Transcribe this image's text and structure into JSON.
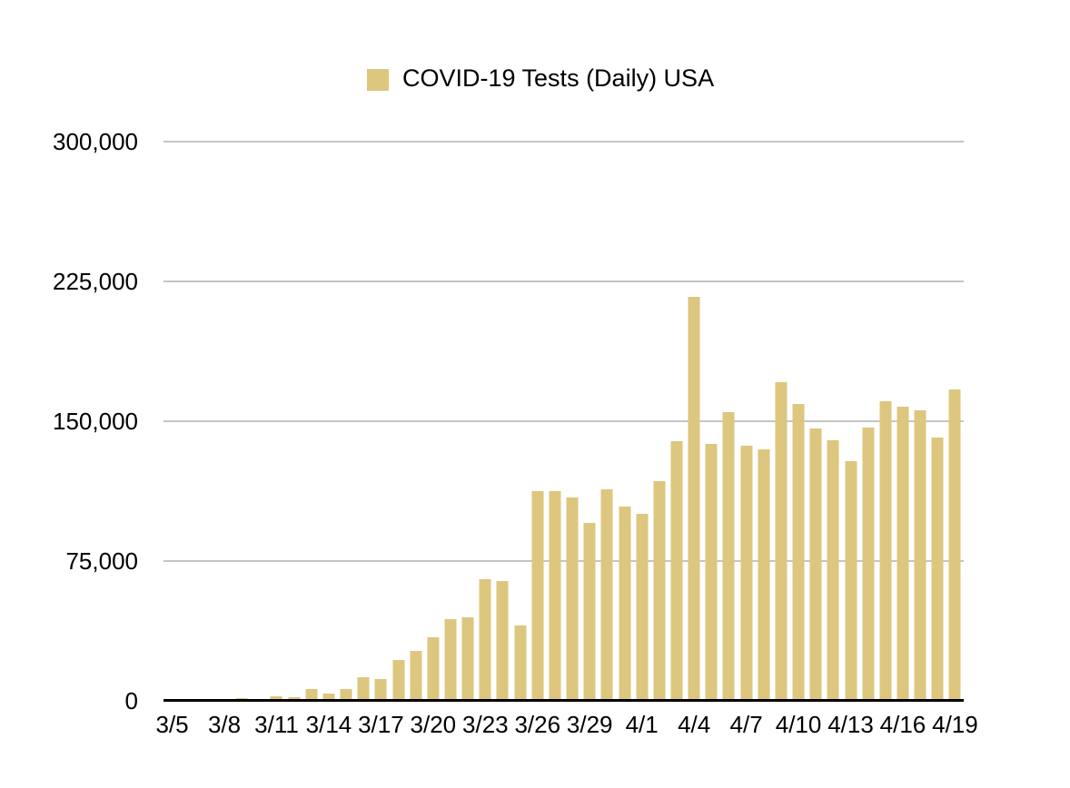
{
  "page": {
    "background_color": "#ffffff",
    "text_color": "#000000"
  },
  "legend": {
    "label": "COVID-19 Tests (Daily) USA",
    "swatch_color": "#DDC67E"
  },
  "chart_data": {
    "type": "bar",
    "title": "COVID-19 Tests (Daily) USA",
    "legend_position": "top",
    "grid": "horizontal",
    "bar_color": "#DDC67E",
    "gridline_color": "#C5C5C5",
    "axis_color": "#000000",
    "ylim": [
      0,
      300000
    ],
    "yticks": [
      0,
      75000,
      150000,
      225000,
      300000
    ],
    "ytick_labels": [
      "0",
      "75,000",
      "150,000",
      "225,000",
      "300,000"
    ],
    "xtick_every": 3,
    "xtick_labels": [
      "3/5",
      "3/8",
      "3/11",
      "3/14",
      "3/17",
      "3/20",
      "3/23",
      "3/26",
      "3/29",
      "4/1",
      "4/4",
      "4/7",
      "4/10",
      "4/13",
      "4/16",
      "4/19"
    ],
    "x": [
      "3/5",
      "3/6",
      "3/7",
      "3/8",
      "3/9",
      "3/10",
      "3/11",
      "3/12",
      "3/13",
      "3/14",
      "3/15",
      "3/16",
      "3/17",
      "3/18",
      "3/19",
      "3/20",
      "3/21",
      "3/22",
      "3/23",
      "3/24",
      "3/25",
      "3/26",
      "3/27",
      "3/28",
      "3/29",
      "3/30",
      "3/31",
      "4/1",
      "4/2",
      "4/3",
      "4/4",
      "4/5",
      "4/6",
      "4/7",
      "4/8",
      "4/9",
      "4/10",
      "4/11",
      "4/12",
      "4/13",
      "4/14",
      "4/15",
      "4/16",
      "4/17",
      "4/18",
      "4/19"
    ],
    "values": [
      200,
      300,
      500,
      700,
      1500,
      1000,
      2500,
      2100,
      6100,
      3700,
      6400,
      12800,
      11600,
      21900,
      26900,
      34100,
      43600,
      44900,
      65300,
      64400,
      40600,
      112300,
      112700,
      108900,
      95400,
      113400,
      104000,
      100500,
      117700,
      139100,
      216500,
      138000,
      154900,
      137000,
      135100,
      170800,
      159100,
      146100,
      139900,
      128500,
      146400,
      160700,
      158000,
      155900,
      141200,
      167200
    ]
  }
}
